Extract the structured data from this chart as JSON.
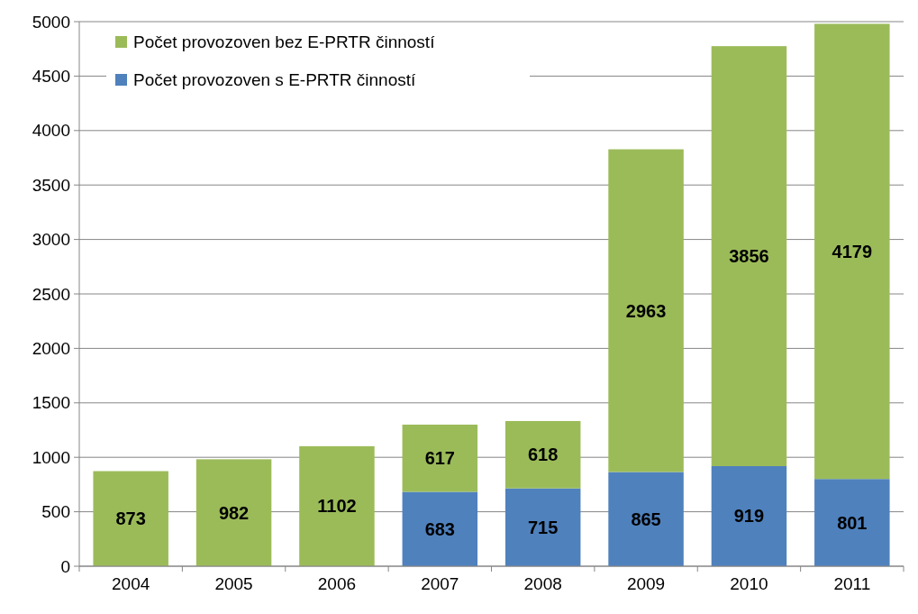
{
  "chart_data": {
    "type": "bar",
    "stacked": true,
    "categories": [
      "2004",
      "2005",
      "2006",
      "2007",
      "2008",
      "2009",
      "2010",
      "2011"
    ],
    "series": [
      {
        "name": "Počet provozoven s E-PRTR činností",
        "color": "#4f81bd",
        "values": [
          null,
          null,
          null,
          683,
          715,
          865,
          919,
          801
        ]
      },
      {
        "name": "Počet provozoven bez E-PRTR činností",
        "color": "#9bbb59",
        "values": [
          873,
          982,
          1102,
          617,
          618,
          2963,
          3856,
          4179
        ]
      }
    ],
    "ylim": [
      0,
      5000
    ],
    "yticks": [
      0,
      500,
      1000,
      1500,
      2000,
      2500,
      3000,
      3500,
      4000,
      4500,
      5000
    ],
    "grid": "y",
    "legend": "top left",
    "data_labels": true
  }
}
